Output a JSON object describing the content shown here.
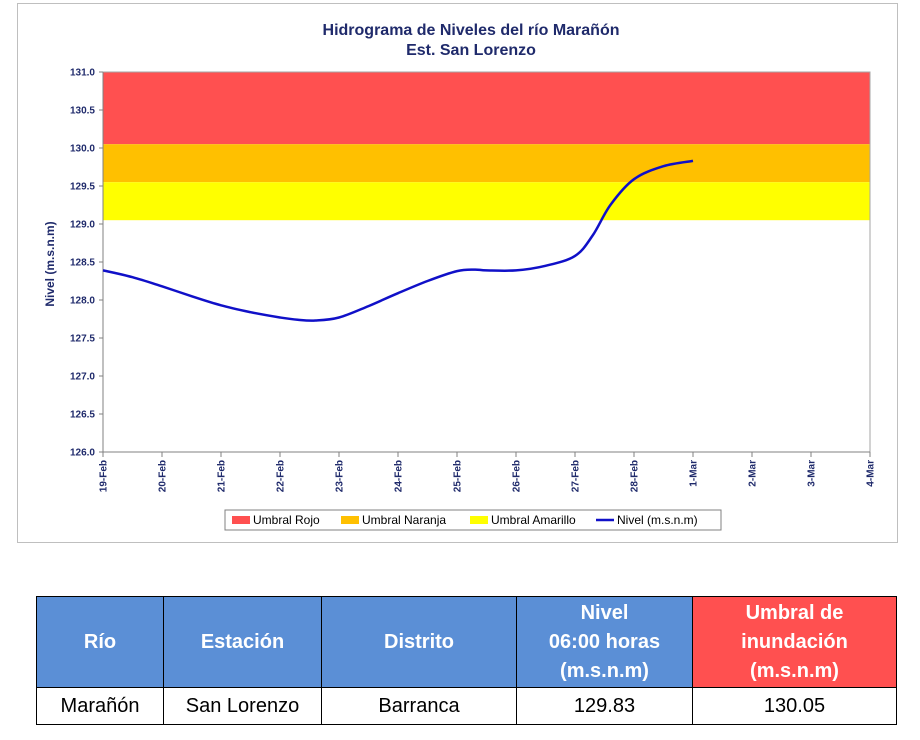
{
  "chart_data": {
    "type": "line",
    "title": "Hidrograma de Niveles del río Marañón",
    "subtitle": "Est. San Lorenzo",
    "ylabel": "Nivel (m.s.n.m)",
    "ylim": [
      126.0,
      131.0
    ],
    "yticks": [
      "126.0",
      "126.5",
      "127.0",
      "127.5",
      "128.0",
      "128.5",
      "129.0",
      "129.5",
      "130.0",
      "130.5",
      "131.0"
    ],
    "categories": [
      "19-Feb",
      "20-Feb",
      "21-Feb",
      "22-Feb",
      "23-Feb",
      "24-Feb",
      "25-Feb",
      "26-Feb",
      "27-Feb",
      "28-Feb",
      "1-Mar",
      "2-Mar",
      "3-Mar",
      "4-Mar"
    ],
    "bands": [
      {
        "name": "Umbral Rojo",
        "from": 130.05,
        "to": 131.0,
        "color": "#ff5050"
      },
      {
        "name": "Umbral Naranja",
        "from": 129.55,
        "to": 130.05,
        "color": "#ffc000"
      },
      {
        "name": "Umbral Amarillo",
        "from": 129.05,
        "to": 129.55,
        "color": "#ffff00"
      }
    ],
    "series": [
      {
        "name": "Nivel (m.s.n.m)",
        "color": "#1010c8",
        "points": [
          [
            0,
            128.39
          ],
          [
            0.5,
            128.3
          ],
          [
            1,
            128.18
          ],
          [
            1.5,
            128.05
          ],
          [
            2,
            127.93
          ],
          [
            2.5,
            127.84
          ],
          [
            3,
            127.77
          ],
          [
            3.3,
            127.74
          ],
          [
            3.6,
            127.73
          ],
          [
            4,
            127.77
          ],
          [
            4.5,
            127.92
          ],
          [
            5,
            128.09
          ],
          [
            5.5,
            128.25
          ],
          [
            6,
            128.38
          ],
          [
            6.3,
            128.4
          ],
          [
            6.5,
            128.39
          ],
          [
            7,
            128.39
          ],
          [
            7.5,
            128.45
          ],
          [
            8,
            128.58
          ],
          [
            8.3,
            128.85
          ],
          [
            8.6,
            129.25
          ],
          [
            9,
            129.59
          ],
          [
            9.5,
            129.76
          ],
          [
            10,
            129.83
          ]
        ]
      }
    ],
    "legend": [
      "Umbral Rojo",
      "Umbral Naranja",
      "Umbral Amarillo",
      "Nivel (m.s.n.m)"
    ],
    "legend_position": "bottom",
    "grid": false
  },
  "table": {
    "headers": [
      "Río",
      "Estación",
      "Distrito",
      "Nivel\n06:00 horas\n(m.s.n.m)",
      "Umbral de\ninundación\n(m.s.n.m)"
    ],
    "row": [
      "Marañón",
      "San Lorenzo",
      "Barranca",
      "129.83",
      "130.05"
    ]
  }
}
